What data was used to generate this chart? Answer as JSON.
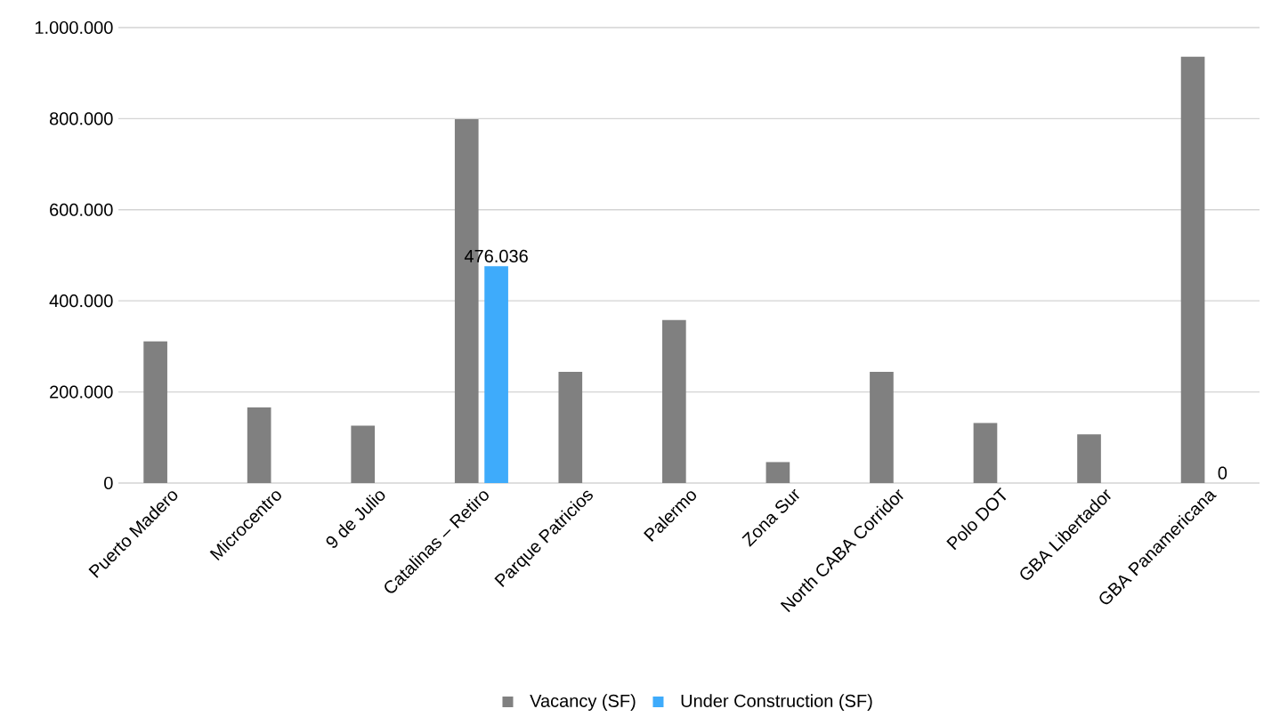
{
  "chart_data": {
    "type": "bar",
    "categories": [
      "Puerto Madero",
      "Microcentro",
      "9 de Julio",
      "Catalinas – Retiro",
      "Parque Patricios",
      "Palermo",
      "Zona Sur",
      "North CABA Corridor",
      "Polo DOT",
      "GBA Libertador",
      "GBA Panamericana"
    ],
    "series": [
      {
        "name": "Vacancy (SF)",
        "color": "#808080",
        "values": [
          311000,
          166000,
          126000,
          799000,
          244000,
          358000,
          46000,
          244000,
          132000,
          107000,
          936000
        ]
      },
      {
        "name": "Under Construction (SF)",
        "color": "#3eabfb",
        "values": [
          null,
          null,
          null,
          476036,
          null,
          null,
          null,
          null,
          null,
          null,
          0
        ],
        "value_labels": [
          null,
          null,
          null,
          "476.036",
          null,
          null,
          null,
          null,
          null,
          null,
          "0"
        ]
      }
    ],
    "ylim": [
      0,
      1000000
    ],
    "yticks": [
      0,
      {
        "value": 200000,
        "label": "200.000"
      },
      {
        "value": 400000,
        "label": "400.000"
      },
      {
        "value": 600000,
        "label": "600.000"
      },
      {
        "value": 800000,
        "label": "800.000"
      },
      {
        "value": 1000000,
        "label": "1.000.000"
      }
    ],
    "grid": "y",
    "legend": "bottom"
  }
}
